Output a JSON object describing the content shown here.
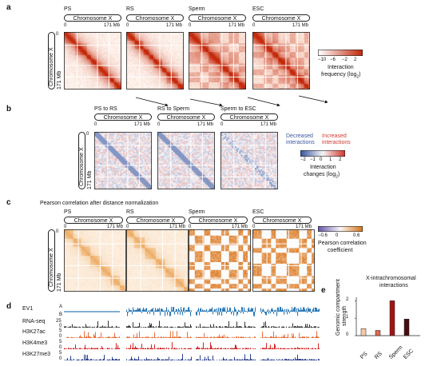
{
  "panel_labels": {
    "a": "a",
    "b": "b",
    "c": "c",
    "d": "d",
    "e": "e"
  },
  "panel_a": {
    "titles": [
      "PS",
      "RS",
      "Sperm",
      "ESC"
    ],
    "pill": "Chromosome X",
    "tick_start": "0",
    "tick_end": "171 Mb",
    "ylabel": "Chromosome X",
    "y_tick_start": "0",
    "y_tick_end": "171 Mb",
    "legend": {
      "ticks": [
        "−10",
        "−6",
        "−2",
        "2"
      ],
      "label": "Interaction",
      "label2": "frequency (log",
      "sub": "2",
      "close": ")"
    },
    "colors": {
      "low": "#ffffff",
      "high": "#c4280a"
    }
  },
  "panel_b": {
    "titles": [
      "PS to RS",
      "RS to Sperm",
      "Sperm to ESC"
    ],
    "pill": "Chromosome X",
    "tick_start": "0",
    "tick_end": "171 Mb",
    "ylabel": "Chromosome X",
    "y_tick_start": "0",
    "y_tick_end": "171 Mb",
    "decreased": "Decreased",
    "decreased2": "interactions",
    "increased": "Increased",
    "increased2": "interactions",
    "legend": {
      "ticks": [
        "−2",
        "−1",
        "0",
        "1",
        "2"
      ],
      "label": "Interaction",
      "label2": "changes (log",
      "sub": "2",
      "close": ")"
    },
    "colors": {
      "blue": "#3b57a0",
      "red": "#d23a33"
    }
  },
  "panel_c": {
    "title": "Pearson correlation after distance normalization",
    "titles": [
      "PS",
      "RS",
      "Sperm",
      "ESC"
    ],
    "pill": "Chromosome X",
    "tick_start": "0",
    "tick_end": "171 Mb",
    "ylabel": "Chromosome X",
    "y_tick_start": "0",
    "y_tick_end": "171 Mb",
    "legend": {
      "ticks": [
        "−0.6",
        "0",
        "0.6"
      ],
      "label": "Pearson correlation",
      "label2": "coefficient"
    }
  },
  "panel_d": {
    "tracks": [
      "EV1",
      "RNA-seq",
      "H3K27ac",
      "H3K4me3",
      "H3K27me3"
    ],
    "ev_a": "A",
    "ev_b": "B",
    "rna_max": "25",
    "rna_min": "0",
    "track_max": "5",
    "track_min": "0",
    "colors": {
      "ev1": "#2e7bb6",
      "rna": "#333333",
      "h3k27ac": "#e8703a",
      "h3k4me3": "#d62728",
      "h3k27me3": "#2b3f8f"
    }
  },
  "panel_e": {
    "title": "X-intrachromosomal",
    "title2": "interactions",
    "ylabel": "Genomic compartment",
    "ylabel2": "strength",
    "y_ticks": [
      "0",
      "1",
      "2"
    ],
    "chart_data": {
      "type": "bar",
      "categories": [
        "PS",
        "RS",
        "Sperm",
        "ESC"
      ],
      "values": [
        0.4,
        0.3,
        2.0,
        0.95
      ],
      "ylim": [
        0,
        2.2
      ],
      "colors": [
        "#f7c8a8",
        "#e06a4c",
        "#a01515",
        "#4a0c0c"
      ]
    }
  }
}
